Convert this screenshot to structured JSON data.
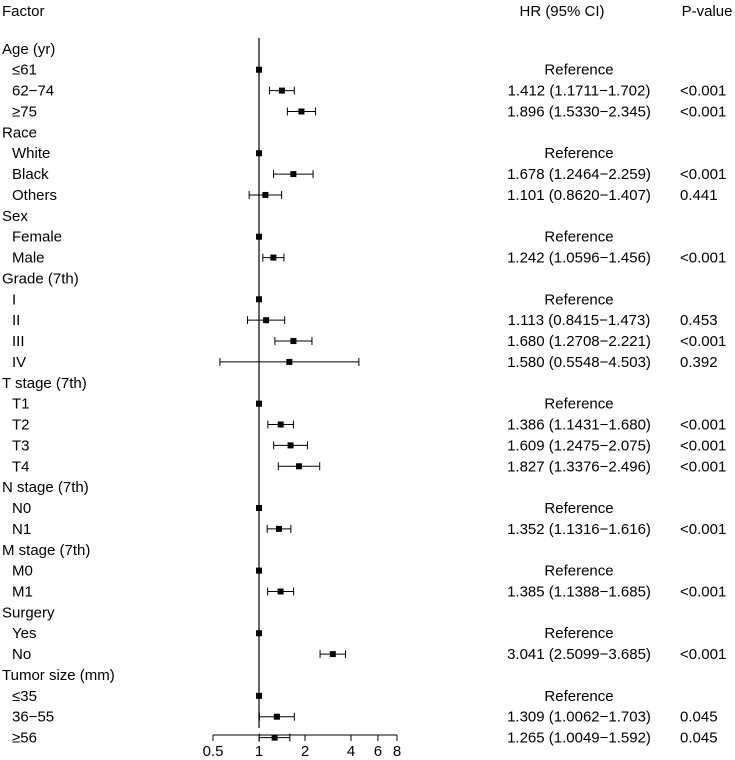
{
  "chart_data": {
    "type": "forest",
    "headers": {
      "factor": "Factor",
      "hr": "HR (95% CI)",
      "pvalue": "P-value"
    },
    "x_scale": "log",
    "xlim": [
      0.5,
      8
    ],
    "xticks": [
      0.5,
      1,
      2,
      4,
      6,
      8
    ],
    "xtick_labels": [
      "0.5",
      "1",
      "2",
      "4",
      "6",
      "8"
    ],
    "reference_line": 1,
    "rows": [
      {
        "kind": "group",
        "label": "Age (yr)"
      },
      {
        "kind": "level",
        "label": "≤61",
        "hr": 1,
        "reference": true,
        "hr_text": "Reference",
        "p": ""
      },
      {
        "kind": "level",
        "label": "62−74",
        "hr": 1.412,
        "lo": 1.1711,
        "hi": 1.702,
        "hr_text": "1.412 (1.1711−1.702)",
        "p": "<0.001"
      },
      {
        "kind": "level",
        "label": "≥75",
        "hr": 1.896,
        "lo": 1.533,
        "hi": 2.345,
        "hr_text": "1.896 (1.5330−2.345)",
        "p": "<0.001"
      },
      {
        "kind": "group",
        "label": "Race"
      },
      {
        "kind": "level",
        "label": "White",
        "hr": 1,
        "reference": true,
        "hr_text": "Reference",
        "p": ""
      },
      {
        "kind": "level",
        "label": "Black",
        "hr": 1.678,
        "lo": 1.2464,
        "hi": 2.259,
        "hr_text": "1.678 (1.2464−2.259)",
        "p": "<0.001"
      },
      {
        "kind": "level",
        "label": "Others",
        "hr": 1.101,
        "lo": 0.862,
        "hi": 1.407,
        "hr_text": "1.101 (0.8620−1.407)",
        "p": "0.441"
      },
      {
        "kind": "group",
        "label": "Sex"
      },
      {
        "kind": "level",
        "label": "Female",
        "hr": 1,
        "reference": true,
        "hr_text": "Reference",
        "p": ""
      },
      {
        "kind": "level",
        "label": "Male",
        "hr": 1.242,
        "lo": 1.0596,
        "hi": 1.456,
        "hr_text": "1.242 (1.0596−1.456)",
        "p": "<0.001"
      },
      {
        "kind": "group",
        "label": "Grade (7th)"
      },
      {
        "kind": "level",
        "label": "I",
        "hr": 1,
        "reference": true,
        "hr_text": "Reference",
        "p": ""
      },
      {
        "kind": "level",
        "label": "II",
        "hr": 1.113,
        "lo": 0.8415,
        "hi": 1.473,
        "hr_text": "1.113 (0.8415−1.473)",
        "p": "0.453"
      },
      {
        "kind": "level",
        "label": "III",
        "hr": 1.68,
        "lo": 1.2708,
        "hi": 2.221,
        "hr_text": "1.680 (1.2708−2.221)",
        "p": "<0.001"
      },
      {
        "kind": "level",
        "label": "IV",
        "hr": 1.58,
        "lo": 0.5548,
        "hi": 4.503,
        "hr_text": "1.580 (0.5548−4.503)",
        "p": "0.392"
      },
      {
        "kind": "group",
        "label": "T stage (7th)"
      },
      {
        "kind": "level",
        "label": "T1",
        "hr": 1,
        "reference": true,
        "hr_text": "Reference",
        "p": ""
      },
      {
        "kind": "level",
        "label": "T2",
        "hr": 1.386,
        "lo": 1.1431,
        "hi": 1.68,
        "hr_text": "1.386 (1.1431−1.680)",
        "p": "<0.001"
      },
      {
        "kind": "level",
        "label": "T3",
        "hr": 1.609,
        "lo": 1.2475,
        "hi": 2.075,
        "hr_text": "1.609 (1.2475−2.075)",
        "p": "<0.001"
      },
      {
        "kind": "level",
        "label": "T4",
        "hr": 1.827,
        "lo": 1.3376,
        "hi": 2.496,
        "hr_text": "1.827 (1.3376−2.496)",
        "p": "<0.001"
      },
      {
        "kind": "group",
        "label": "N stage (7th)"
      },
      {
        "kind": "level",
        "label": "N0",
        "hr": 1,
        "reference": true,
        "hr_text": "Reference",
        "p": ""
      },
      {
        "kind": "level",
        "label": "N1",
        "hr": 1.352,
        "lo": 1.1316,
        "hi": 1.616,
        "hr_text": "1.352 (1.1316−1.616)",
        "p": "<0.001"
      },
      {
        "kind": "group",
        "label": "M stage (7th)"
      },
      {
        "kind": "level",
        "label": "M0",
        "hr": 1,
        "reference": true,
        "hr_text": "Reference",
        "p": ""
      },
      {
        "kind": "level",
        "label": "M1",
        "hr": 1.385,
        "lo": 1.1388,
        "hi": 1.685,
        "hr_text": "1.385 (1.1388−1.685)",
        "p": "<0.001"
      },
      {
        "kind": "group",
        "label": "Surgery"
      },
      {
        "kind": "level",
        "label": "Yes",
        "hr": 1,
        "reference": true,
        "hr_text": "Reference",
        "p": ""
      },
      {
        "kind": "level",
        "label": "No",
        "hr": 3.041,
        "lo": 2.5099,
        "hi": 3.685,
        "hr_text": "3.041 (2.5099−3.685)",
        "p": "<0.001"
      },
      {
        "kind": "group",
        "label": "Tumor size (mm)"
      },
      {
        "kind": "level",
        "label": "≤35",
        "hr": 1,
        "reference": true,
        "hr_text": "Reference",
        "p": ""
      },
      {
        "kind": "level",
        "label": "36−55",
        "hr": 1.309,
        "lo": 1.0062,
        "hi": 1.703,
        "hr_text": "1.309 (1.0062−1.703)",
        "p": "0.045"
      },
      {
        "kind": "level",
        "label": "≥56",
        "hr": 1.265,
        "lo": 1.0049,
        "hi": 1.592,
        "hr_text": "1.265 (1.0049−1.592)",
        "p": "0.045"
      }
    ]
  }
}
